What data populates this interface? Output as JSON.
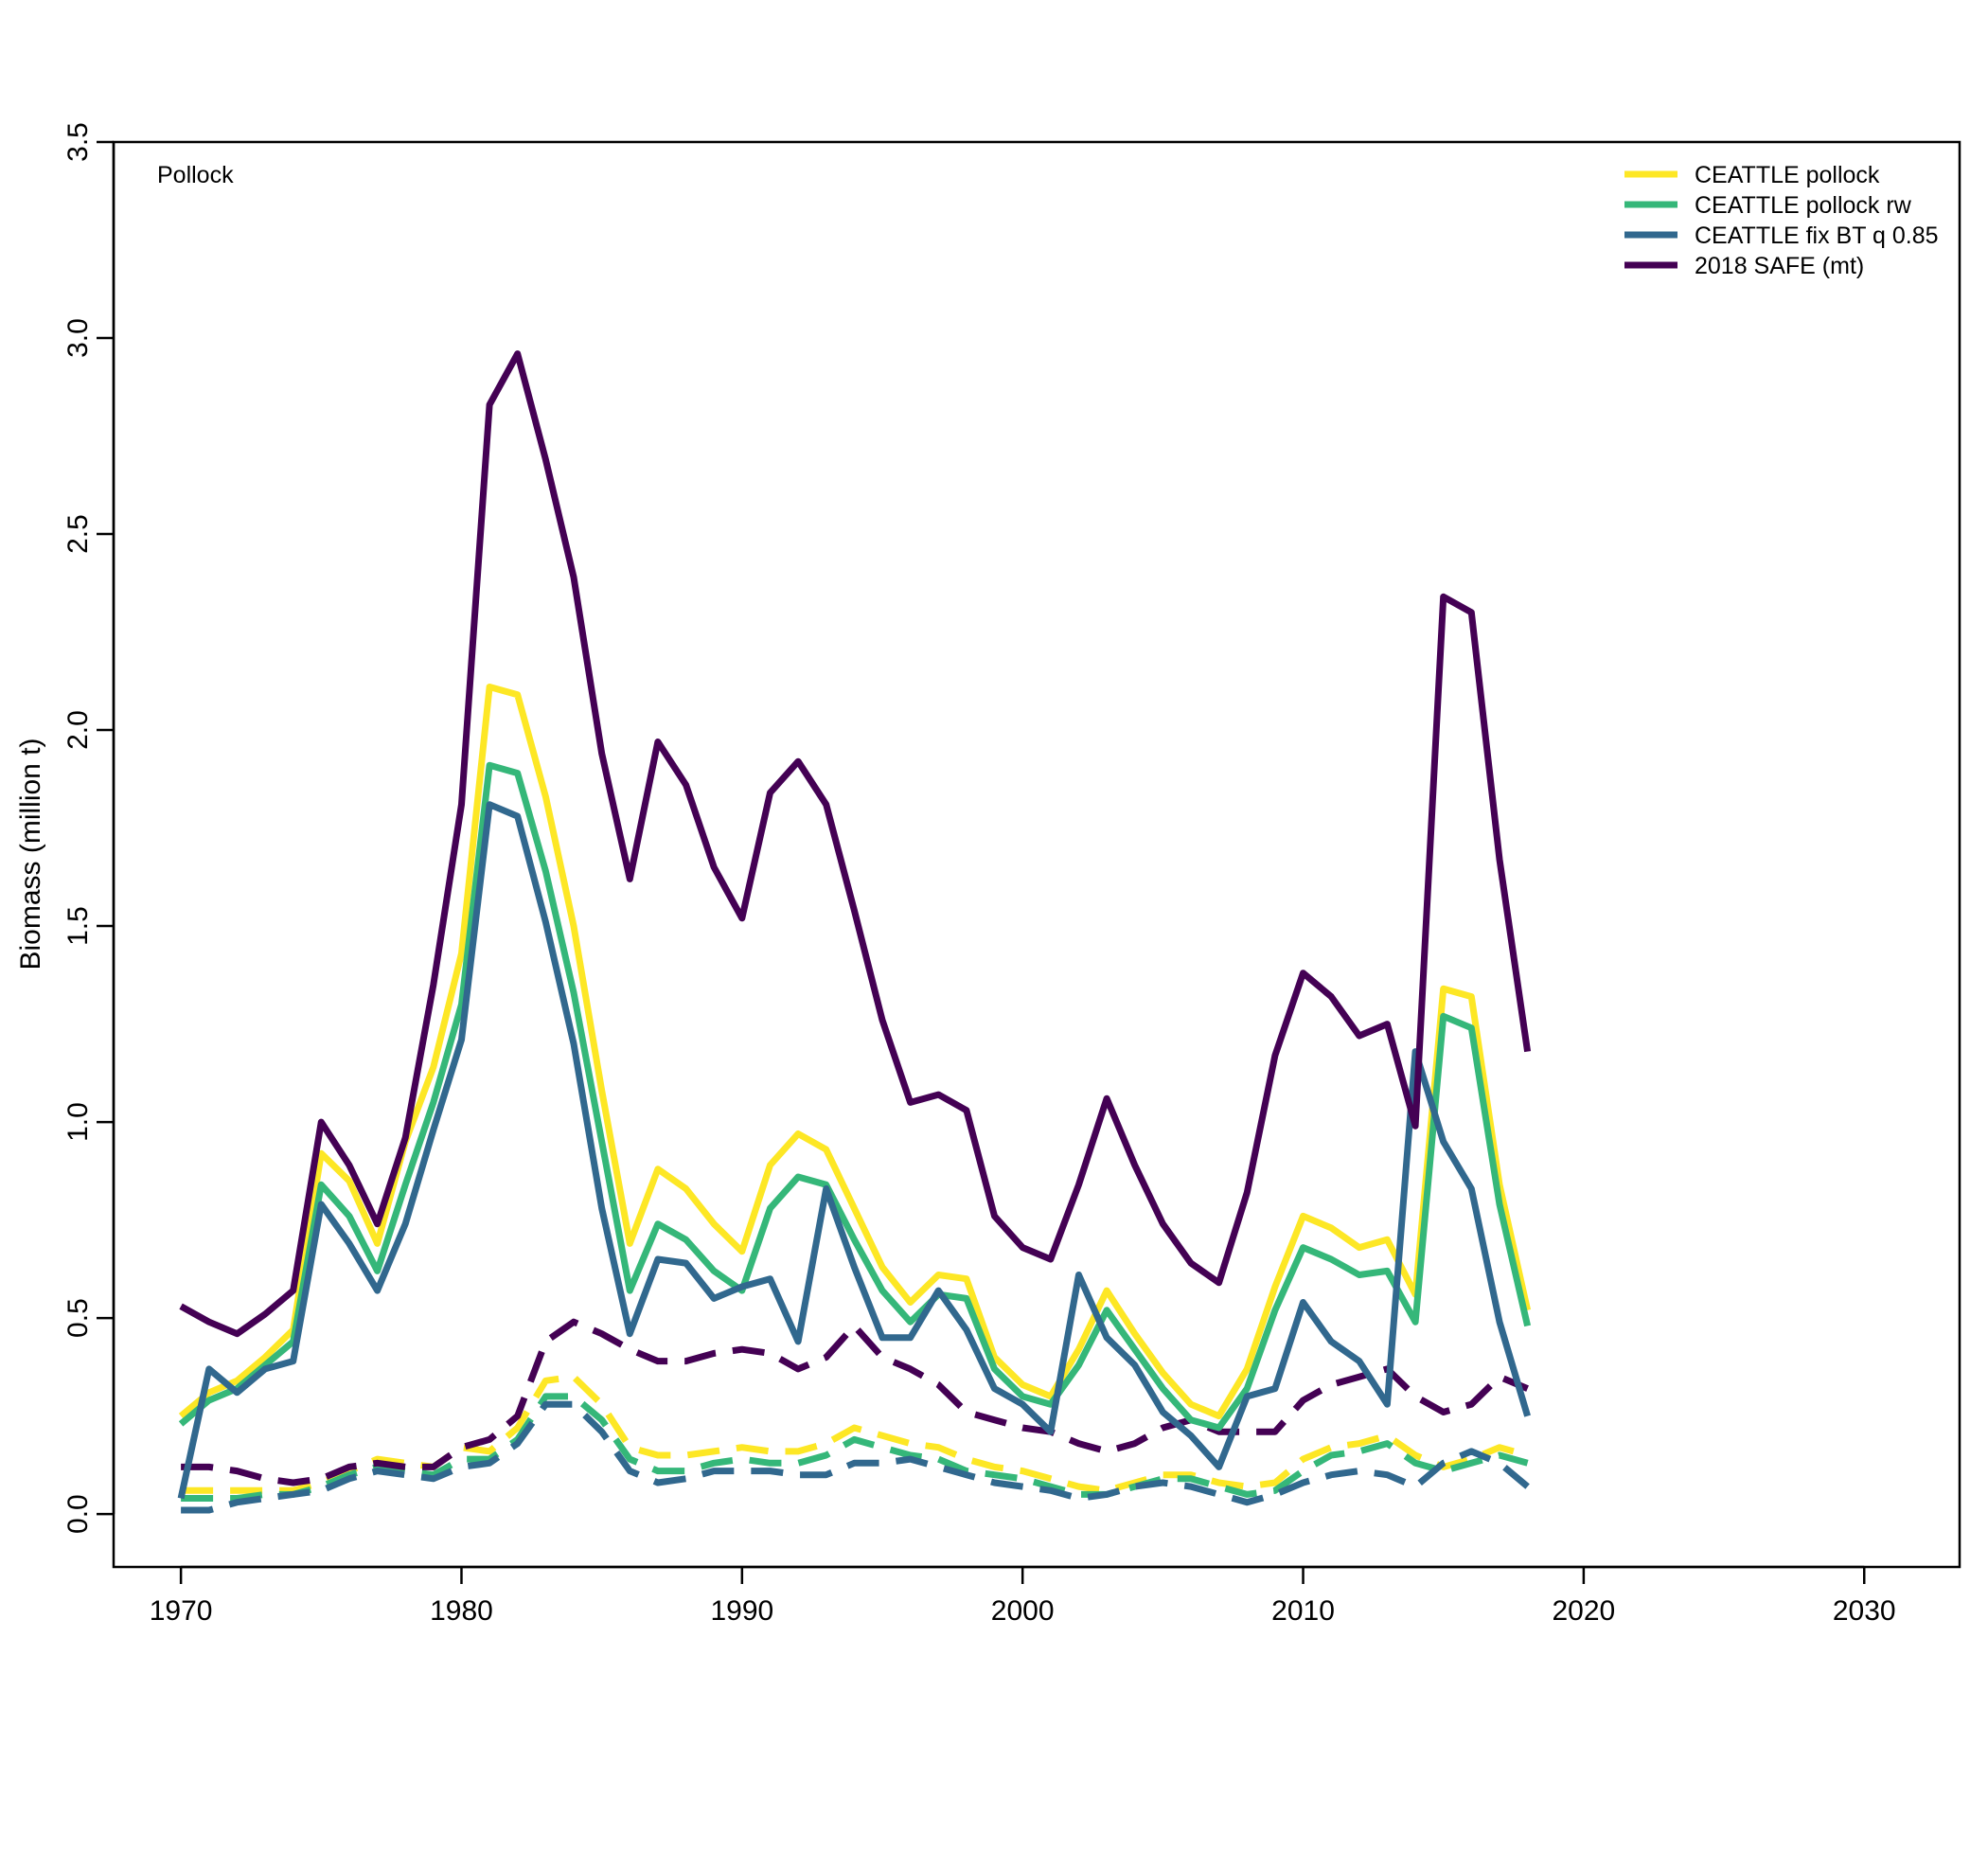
{
  "chart_data": {
    "type": "line",
    "panel_label": "Pollock",
    "xlabel": "",
    "ylabel": "Biomass (million t)",
    "xlim": [
      1967.6,
      2033.4
    ],
    "ylim": [
      -0.135,
      3.5
    ],
    "x_ticks": [
      1970,
      1980,
      1990,
      2000,
      2010,
      2020,
      2030
    ],
    "y_ticks": [
      0.0,
      0.5,
      1.0,
      1.5,
      2.0,
      2.5,
      3.0,
      3.5
    ],
    "y_tick_labels": [
      "0.0",
      "0.5",
      "1.0",
      "1.5",
      "2.0",
      "2.5",
      "3.0",
      "3.5"
    ],
    "grid": false,
    "legend_position": "top-right",
    "x": [
      1970,
      1971,
      1972,
      1973,
      1974,
      1975,
      1976,
      1977,
      1978,
      1979,
      1980,
      1981,
      1982,
      1983,
      1984,
      1985,
      1986,
      1987,
      1988,
      1989,
      1990,
      1991,
      1992,
      1993,
      1994,
      1995,
      1996,
      1997,
      1998,
      1999,
      2000,
      2001,
      2002,
      2003,
      2004,
      2005,
      2006,
      2007,
      2008,
      2009,
      2010,
      2011,
      2012,
      2013,
      2014,
      2015,
      2016,
      2017,
      2018
    ],
    "series": [
      {
        "name": "CEATTLE pollock",
        "color": "#FDE725",
        "solid": [
          0.25,
          0.31,
          0.34,
          0.4,
          0.47,
          0.92,
          0.85,
          0.69,
          0.95,
          1.14,
          1.43,
          2.11,
          2.09,
          1.83,
          1.5,
          1.08,
          0.69,
          0.88,
          0.83,
          0.74,
          0.67,
          0.89,
          0.97,
          0.93,
          0.78,
          0.63,
          0.54,
          0.61,
          0.6,
          0.4,
          0.33,
          0.3,
          0.42,
          0.57,
          0.46,
          0.36,
          0.28,
          0.25,
          0.37,
          0.58,
          0.76,
          0.73,
          0.68,
          0.7,
          0.56,
          1.34,
          1.32,
          0.84,
          0.52
        ],
        "dashed": [
          0.06,
          0.06,
          0.06,
          0.06,
          0.06,
          0.08,
          0.11,
          0.14,
          0.13,
          0.12,
          0.17,
          0.16,
          0.22,
          0.34,
          0.35,
          0.28,
          0.17,
          0.15,
          0.15,
          0.16,
          0.17,
          0.16,
          0.16,
          0.18,
          0.22,
          0.2,
          0.18,
          0.17,
          0.14,
          0.12,
          0.11,
          0.09,
          0.07,
          0.06,
          0.08,
          0.1,
          0.1,
          0.08,
          0.07,
          0.08,
          0.14,
          0.17,
          0.18,
          0.2,
          0.15,
          0.12,
          0.14,
          0.17,
          0.15
        ]
      },
      {
        "name": "CEATTLE pollock rw",
        "color": "#35B779",
        "solid": [
          0.23,
          0.29,
          0.32,
          0.38,
          0.44,
          0.84,
          0.76,
          0.62,
          0.84,
          1.05,
          1.3,
          1.91,
          1.89,
          1.64,
          1.33,
          0.95,
          0.57,
          0.74,
          0.7,
          0.62,
          0.57,
          0.78,
          0.86,
          0.84,
          0.7,
          0.57,
          0.49,
          0.56,
          0.55,
          0.37,
          0.3,
          0.28,
          0.38,
          0.52,
          0.42,
          0.32,
          0.24,
          0.22,
          0.32,
          0.52,
          0.68,
          0.65,
          0.61,
          0.62,
          0.49,
          1.27,
          1.24,
          0.79,
          0.48
        ],
        "dashed": [
          0.04,
          0.04,
          0.04,
          0.05,
          0.05,
          0.07,
          0.1,
          0.12,
          0.11,
          0.1,
          0.14,
          0.14,
          0.19,
          0.3,
          0.3,
          0.24,
          0.14,
          0.11,
          0.11,
          0.13,
          0.14,
          0.13,
          0.13,
          0.15,
          0.19,
          0.17,
          0.15,
          0.14,
          0.11,
          0.1,
          0.09,
          0.07,
          0.05,
          0.05,
          0.07,
          0.09,
          0.09,
          0.07,
          0.05,
          0.06,
          0.11,
          0.15,
          0.16,
          0.18,
          0.13,
          0.11,
          0.13,
          0.15,
          0.13
        ]
      },
      {
        "name": "CEATTLE fix BT q 0.85",
        "color": "#31688E",
        "solid": [
          0.04,
          0.37,
          0.31,
          0.37,
          0.39,
          0.79,
          0.69,
          0.57,
          0.74,
          0.98,
          1.21,
          1.81,
          1.78,
          1.51,
          1.2,
          0.78,
          0.46,
          0.65,
          0.64,
          0.55,
          0.58,
          0.6,
          0.44,
          0.83,
          0.63,
          0.45,
          0.45,
          0.57,
          0.47,
          0.32,
          0.28,
          0.21,
          0.61,
          0.45,
          0.38,
          0.26,
          0.2,
          0.12,
          0.3,
          0.32,
          0.54,
          0.44,
          0.39,
          0.28,
          1.18,
          0.95,
          0.83,
          0.49,
          0.25
        ],
        "dashed": [
          0.01,
          0.01,
          0.03,
          0.04,
          0.05,
          0.06,
          0.09,
          0.11,
          0.1,
          0.09,
          0.12,
          0.13,
          0.18,
          0.28,
          0.28,
          0.21,
          0.11,
          0.08,
          0.09,
          0.11,
          0.11,
          0.11,
          0.1,
          0.1,
          0.13,
          0.13,
          0.14,
          0.12,
          0.1,
          0.08,
          0.07,
          0.06,
          0.04,
          0.05,
          0.07,
          0.08,
          0.07,
          0.05,
          0.03,
          0.05,
          0.08,
          0.1,
          0.11,
          0.1,
          0.07,
          0.13,
          0.16,
          0.13,
          0.07
        ]
      },
      {
        "name": "2018 SAFE (mt)",
        "color": "#440154",
        "solid": [
          0.53,
          0.49,
          0.46,
          0.51,
          0.57,
          1.0,
          0.89,
          0.74,
          0.96,
          1.35,
          1.81,
          2.83,
          2.96,
          2.69,
          2.39,
          1.94,
          1.62,
          1.97,
          1.86,
          1.65,
          1.52,
          1.84,
          1.92,
          1.81,
          1.54,
          1.26,
          1.05,
          1.07,
          1.03,
          0.76,
          0.68,
          0.65,
          0.84,
          1.06,
          0.89,
          0.74,
          0.64,
          0.59,
          0.82,
          1.17,
          1.38,
          1.32,
          1.22,
          1.25,
          0.99,
          2.34,
          2.3,
          1.67,
          1.18
        ],
        "dashed": [
          0.12,
          0.12,
          0.11,
          0.09,
          0.08,
          0.09,
          0.12,
          0.13,
          0.12,
          0.12,
          0.17,
          0.19,
          0.25,
          0.44,
          0.49,
          0.46,
          0.42,
          0.39,
          0.39,
          0.41,
          0.42,
          0.41,
          0.37,
          0.4,
          0.48,
          0.4,
          0.37,
          0.33,
          0.26,
          0.24,
          0.22,
          0.21,
          0.18,
          0.16,
          0.18,
          0.22,
          0.24,
          0.21,
          0.21,
          0.21,
          0.29,
          0.33,
          0.35,
          0.37,
          0.3,
          0.26,
          0.28,
          0.35,
          0.32
        ]
      }
    ]
  }
}
